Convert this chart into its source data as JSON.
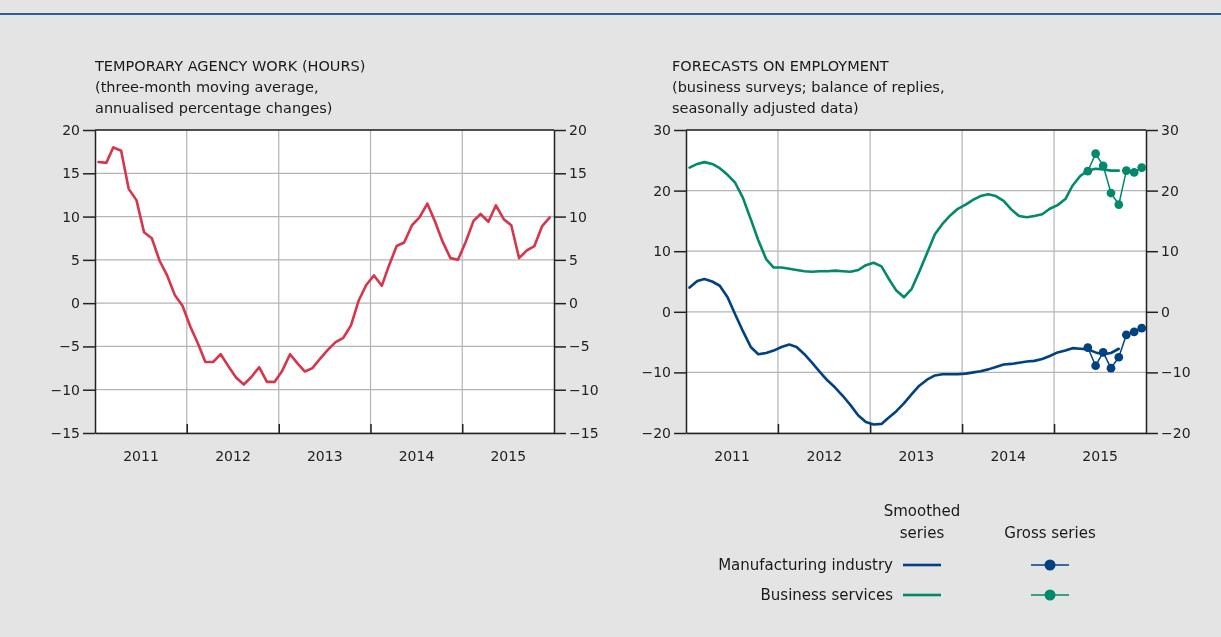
{
  "chart_data": [
    {
      "type": "line",
      "title": "TEMPORARY AGENCY WORK (HOURS)",
      "subtitle": "(three-month moving average,\nannualised percentage changes)",
      "x": [
        "2011-01-15",
        "2011-02-15",
        "2011-03-15",
        "2011-04-15",
        "2011-05-15",
        "2011-06-15",
        "2011-07-15",
        "2011-08-15",
        "2011-09-15",
        "2011-10-15",
        "2011-11-15",
        "2011-12-15",
        "2012-01-15",
        "2012-02-15",
        "2012-03-15",
        "2012-04-15",
        "2012-05-15",
        "2012-06-15",
        "2012-07-15",
        "2012-08-15",
        "2012-09-15",
        "2012-10-15",
        "2012-11-15",
        "2012-12-15",
        "2013-01-15",
        "2013-02-15",
        "2013-03-15",
        "2013-04-15",
        "2013-05-15",
        "2013-06-15",
        "2013-07-15",
        "2013-08-15",
        "2013-09-15",
        "2013-10-15",
        "2013-11-15",
        "2013-12-15",
        "2014-01-15",
        "2014-02-15",
        "2014-03-15",
        "2014-04-15",
        "2014-05-15",
        "2014-06-15",
        "2014-07-15",
        "2014-08-15",
        "2014-09-15",
        "2014-10-15",
        "2014-11-15",
        "2014-12-15",
        "2015-01-15",
        "2015-02-15",
        "2015-03-15",
        "2015-04-15",
        "2015-05-15",
        "2015-06-15",
        "2015-07-15",
        "2015-08-15",
        "2015-09-15",
        "2015-10-15",
        "2015-11-15",
        "2015-12-15"
      ],
      "series": [
        {
          "color": "#d7354b",
          "values": [
            16.3,
            16.2,
            18.0,
            17.6,
            13.2,
            11.9,
            8.2,
            7.5,
            4.9,
            3.2,
            0.9,
            -0.3,
            -2.7,
            -4.7,
            -6.8,
            -6.8,
            -5.9,
            -7.3,
            -8.6,
            -9.4,
            -8.5,
            -7.4,
            -9.1,
            -9.1,
            -7.8,
            -5.9,
            -6.9,
            -7.9,
            -7.5,
            -6.4,
            -5.4,
            -4.5,
            -4.0,
            -2.6,
            0.3,
            2.1,
            3.2,
            2.0,
            4.3,
            6.6,
            7.0,
            9.0,
            9.9,
            11.5,
            9.4,
            7.1,
            5.2,
            5.0,
            7.1,
            9.5,
            10.3,
            9.4,
            11.3,
            9.7,
            9.0,
            5.2,
            6.1,
            6.6,
            8.9,
            9.9
          ]
        }
      ],
      "xlim": [
        "2011-01-01",
        "2016-01-01"
      ],
      "xticks": [
        {
          "value": "2011-07-01",
          "label": "2011"
        },
        {
          "value": "2012-01-01",
          "label": null
        },
        {
          "value": "2012-07-01",
          "label": "2012"
        },
        {
          "value": "2013-01-01",
          "label": null
        },
        {
          "value": "2013-07-01",
          "label": "2013"
        },
        {
          "value": "2014-01-01",
          "label": null
        },
        {
          "value": "2014-07-01",
          "label": "2014"
        },
        {
          "value": "2015-01-01",
          "label": null
        },
        {
          "value": "2015-07-01",
          "label": "2015"
        }
      ],
      "ylim": [
        -15,
        20
      ],
      "yticks": [
        -15,
        -10,
        -5,
        0,
        5,
        10,
        15,
        20
      ],
      "y2lim": [
        -15,
        20
      ],
      "y2ticks": [
        -15,
        -10,
        -5,
        0,
        5,
        10,
        15,
        20
      ],
      "grid": true,
      "line_style": "solid",
      "marker": "none",
      "legend": false
    },
    {
      "type": "line",
      "title": "FORECASTS ON EMPLOYMENT",
      "subtitle": "(business surveys; balance of replies,\nseasonally adjusted data)",
      "x": [
        "2011-01-15",
        "2011-02-15",
        "2011-03-15",
        "2011-04-15",
        "2011-05-15",
        "2011-06-15",
        "2011-07-15",
        "2011-08-15",
        "2011-09-15",
        "2011-10-15",
        "2011-11-15",
        "2011-12-15",
        "2012-01-15",
        "2012-02-15",
        "2012-03-15",
        "2012-04-15",
        "2012-05-15",
        "2012-06-15",
        "2012-07-15",
        "2012-08-15",
        "2012-09-15",
        "2012-10-15",
        "2012-11-15",
        "2012-12-15",
        "2013-01-15",
        "2013-02-15",
        "2013-03-15",
        "2013-04-15",
        "2013-05-15",
        "2013-06-15",
        "2013-07-15",
        "2013-08-15",
        "2013-09-15",
        "2013-10-15",
        "2013-11-15",
        "2013-12-15",
        "2014-01-15",
        "2014-02-15",
        "2014-03-15",
        "2014-04-15",
        "2014-05-15",
        "2014-06-15",
        "2014-07-15",
        "2014-08-15",
        "2014-09-15",
        "2014-10-15",
        "2014-11-15",
        "2014-12-15",
        "2015-01-15",
        "2015-02-15",
        "2015-03-15",
        "2015-04-15",
        "2015-05-15",
        "2015-06-15",
        "2015-07-15",
        "2015-08-15",
        "2015-09-15"
      ],
      "series": [
        {
          "name": "Manufacturing industry",
          "color": "#004182",
          "marker": "none",
          "values": [
            4.0,
            5.1,
            5.4,
            5.0,
            4.3,
            2.4,
            -0.4,
            -3.2,
            -5.8,
            -7.0,
            -6.8,
            -6.4,
            -5.8,
            -5.4,
            -5.8,
            -7.0,
            -8.4,
            -9.9,
            -11.3,
            -12.5,
            -13.9,
            -15.4,
            -17.1,
            -18.2,
            -18.6,
            -18.5,
            -17.5,
            -16.4,
            -15.1,
            -13.6,
            -12.2,
            -11.2,
            -10.5,
            -10.3,
            -10.3,
            -10.3,
            -10.2,
            -10.0,
            -9.8,
            -9.5,
            -9.1,
            -8.7,
            -8.6,
            -8.4,
            -8.2,
            -8.1,
            -7.8,
            -7.3,
            -6.7,
            -6.4,
            -6.0,
            -6.1,
            -6.2,
            -6.7,
            -7.0,
            -6.8,
            -6.1
          ]
        },
        {
          "name": "Business services",
          "color": "#00896a",
          "marker": "none",
          "values": [
            23.8,
            24.4,
            24.7,
            24.4,
            23.7,
            22.6,
            21.3,
            18.8,
            15.3,
            11.8,
            8.7,
            7.3,
            7.3,
            7.1,
            6.9,
            6.7,
            6.6,
            6.7,
            6.7,
            6.8,
            6.7,
            6.6,
            6.9,
            7.7,
            8.1,
            7.5,
            5.5,
            3.5,
            2.4,
            3.8,
            6.6,
            9.7,
            12.8,
            14.5,
            15.9,
            17.0,
            17.7,
            18.5,
            19.1,
            19.4,
            19.1,
            18.3,
            16.9,
            15.8,
            15.6,
            15.8,
            16.1,
            17.0,
            17.6,
            18.6,
            20.8,
            22.4,
            23.3,
            23.6,
            23.5,
            23.3,
            23.3
          ]
        },
        {
          "color": "#004182",
          "marker": "circle",
          "x": [
            "2015-05-15",
            "2015-06-15",
            "2015-07-15",
            "2015-08-15",
            "2015-09-15",
            "2015-10-15",
            "2015-11-15",
            "2015-12-15"
          ],
          "values": [
            -5.9,
            -8.9,
            -6.7,
            -9.3,
            -7.5,
            -3.8,
            -3.3,
            -2.7
          ]
        },
        {
          "color": "#00896a",
          "marker": "circle",
          "x": [
            "2015-05-15",
            "2015-06-15",
            "2015-07-15",
            "2015-08-15",
            "2015-09-15",
            "2015-10-15",
            "2015-11-15",
            "2015-12-15"
          ],
          "values": [
            23.2,
            26.1,
            24.1,
            19.6,
            17.7,
            23.3,
            23.0,
            23.8
          ]
        }
      ],
      "xlim": [
        "2011-01-01",
        "2016-01-01"
      ],
      "xticks": [
        {
          "value": "2011-07-01",
          "label": "2011"
        },
        {
          "value": "2012-01-01",
          "label": null
        },
        {
          "value": "2012-07-01",
          "label": "2012"
        },
        {
          "value": "2013-01-01",
          "label": null
        },
        {
          "value": "2013-07-01",
          "label": "2013"
        },
        {
          "value": "2014-01-01",
          "label": null
        },
        {
          "value": "2014-07-01",
          "label": "2014"
        },
        {
          "value": "2015-01-01",
          "label": null
        },
        {
          "value": "2015-07-01",
          "label": "2015"
        }
      ],
      "ylim": [
        -20,
        30
      ],
      "yticks": [
        -20,
        -10,
        0,
        10,
        20,
        30
      ],
      "y2lim": [
        -20,
        30
      ],
      "y2ticks": [
        -20,
        -10,
        0,
        10,
        20,
        30
      ],
      "grid": true,
      "line_style": "solid",
      "legend": "bottom",
      "annotations": [
        "Smoothed\nseries",
        "Gross series"
      ]
    }
  ]
}
